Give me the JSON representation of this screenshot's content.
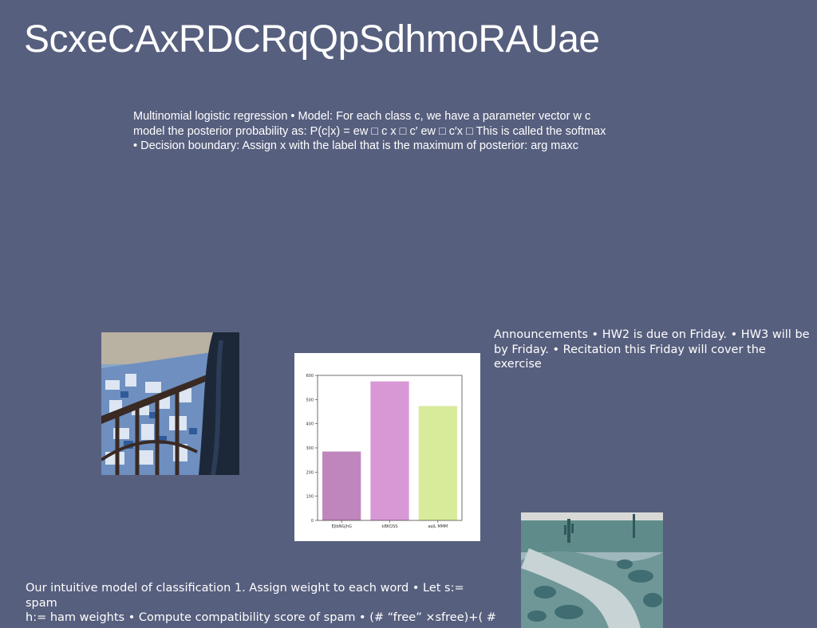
{
  "slide": {
    "title": "ScxeCAxRDCRqQpSdhmoRAUae",
    "background": "#575f7e",
    "text_color": "#ffffff"
  },
  "paragraphs": {
    "softmax": [
      "Multinomial logistic regression • Model: For each class c, we have a parameter vector w c",
      "model the posterior probability as: P(c|x) = ew □ c x □ c′ ew □ c′x □ This is called the softmax",
      "• Decision boundary: Assign x with the label that is the maximum of posterior: arg maxc"
    ],
    "announcements": [
      "Announcements • HW2 is due on Friday. • HW3 will be",
      "by Friday. • Recitation this Friday will cover the exercise"
    ],
    "intuitive_model": [
      "Our intuitive model of classification 1. Assign weight to each word • Let s:= spam",
      "h:= ham weights • Compute compatibility score of spam • (# “free” ×sfree)+( #"
    ]
  },
  "images": {
    "city_photo": "city-balcony-photo",
    "desert_photo": "desert-path-photo"
  },
  "chart_data": {
    "type": "bar",
    "categories": [
      "EJIbNGjhG",
      "kBKQSS",
      "aqiL MMM"
    ],
    "values": [
      285,
      575,
      473
    ],
    "colors": [
      "#bf86bd",
      "#d898d5",
      "#d8eb9b"
    ],
    "ylim": [
      0,
      600
    ],
    "yticks": [
      0,
      100,
      200,
      300,
      400,
      500,
      600
    ],
    "xlabel": "",
    "ylabel": "",
    "title": "",
    "grid": false
  }
}
